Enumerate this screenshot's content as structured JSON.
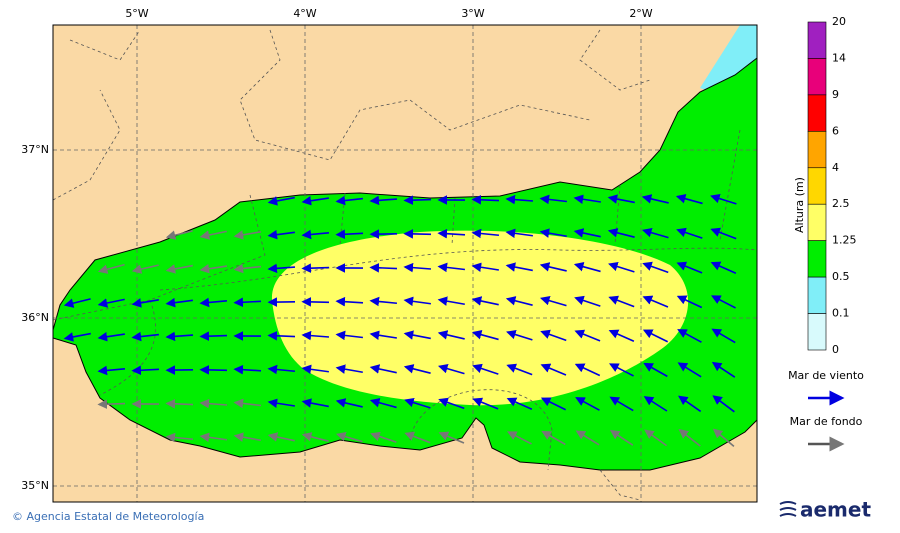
{
  "map": {
    "lon_labels": [
      "5°W",
      "4°W",
      "3°W",
      "2°W"
    ],
    "lat_labels": [
      "37°N",
      "36°N",
      "35°N"
    ],
    "colorbar": {
      "title": "Altura (m)",
      "labels": [
        "20",
        "14",
        "9",
        "6",
        "4",
        "2.5",
        "1.25",
        "0.5",
        "0.1",
        "0"
      ],
      "colors": [
        "#a020c0",
        "#e8007a",
        "#ff0000",
        "#ffa500",
        "#ffd700",
        "#ffff66",
        "#00ee00",
        "#80eef8",
        "#d8fafc"
      ]
    },
    "legend": [
      {
        "label": "Mar de viento",
        "color": "#0000e0"
      },
      {
        "label": "Mar de fondo",
        "color": "#555555"
      }
    ],
    "footer": {
      "credit": "© Agencia Estatal de Meteorología",
      "logo": "aemet"
    }
  }
}
